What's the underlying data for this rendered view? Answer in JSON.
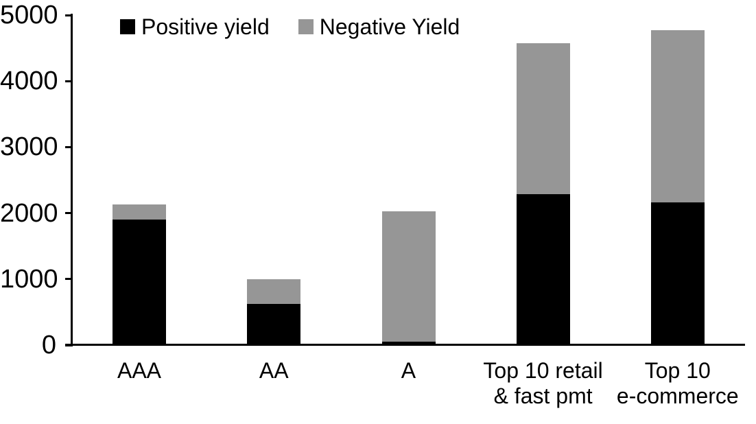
{
  "chart_data": {
    "type": "bar",
    "stacked": true,
    "title": "",
    "xlabel": "",
    "ylabel": "",
    "categories": [
      "AAA",
      "AA",
      "A",
      "Top 10 retail\n& fast pmt",
      "Top 10\ne-commerce"
    ],
    "series": [
      {
        "name": "Positive yield",
        "color": "#000000",
        "values": [
          1900,
          620,
          50,
          2290,
          2160
        ]
      },
      {
        "name": "Negative Yield",
        "color": "#969696",
        "values": [
          230,
          380,
          1980,
          2280,
          2610
        ]
      }
    ],
    "ylim": [
      0,
      5000
    ],
    "yticks": [
      "0",
      "1000",
      "2000",
      "3000",
      "4000",
      "5000"
    ],
    "ytick_values": [
      0,
      1000,
      2000,
      3000,
      4000,
      5000
    ],
    "grid": false,
    "legend_position": "top-inside",
    "axis_color": "#000000",
    "background_color": "#ffffff"
  }
}
